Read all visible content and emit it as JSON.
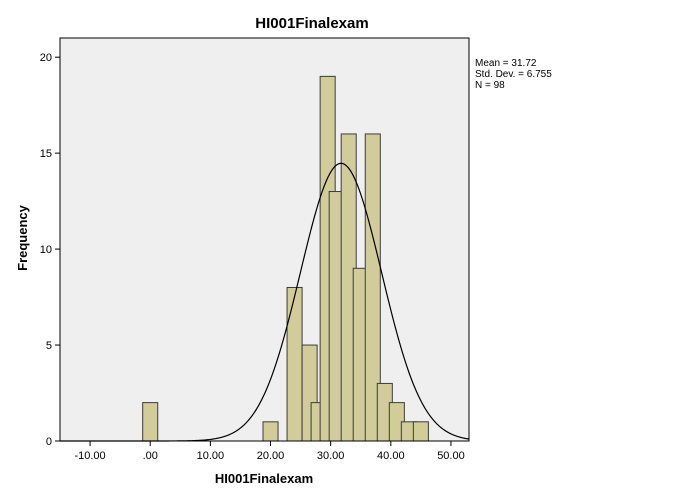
{
  "chart_data": {
    "type": "bar",
    "title": "HI001Finalexam",
    "xlabel": "HI001Finalexam",
    "ylabel": "Frequency",
    "xlim": [
      -15,
      53
    ],
    "ylim": [
      0,
      21
    ],
    "bin_width": 2.5,
    "x_ticks": [
      -10,
      0,
      10,
      20,
      30,
      40,
      50
    ],
    "x_tick_labels": [
      "-10.00",
      ".00",
      "10.00",
      "20.00",
      "30.00",
      "40.00",
      "50.00"
    ],
    "y_ticks": [
      0,
      5,
      10,
      15,
      20
    ],
    "y_tick_labels": [
      "0",
      "5",
      "10",
      "15",
      "20"
    ],
    "bins": [
      {
        "x": 0,
        "value": 2
      },
      {
        "x": 20,
        "value": 1
      },
      {
        "x": 24,
        "value": 8
      },
      {
        "x": 26.5,
        "value": 5
      },
      {
        "x": 28,
        "value": 2
      },
      {
        "x": 29.5,
        "value": 19
      },
      {
        "x": 31,
        "value": 13
      },
      {
        "x": 33,
        "value": 16
      },
      {
        "x": 35,
        "value": 9
      },
      {
        "x": 37,
        "value": 16
      },
      {
        "x": 39,
        "value": 3
      },
      {
        "x": 41,
        "value": 2
      },
      {
        "x": 43,
        "value": 1
      },
      {
        "x": 45,
        "value": 1
      }
    ],
    "normal_curve": {
      "mean": 31.72,
      "std_dev": 6.755,
      "n": 98
    },
    "stats": {
      "mean": "Mean = 31.72",
      "std_dev": "Std. Dev. = 6.755",
      "n": "N = 98"
    },
    "colors": {
      "plot_background": "#efefef",
      "bar_fill": "#d2cc9b",
      "bar_stroke": "#3b3b3b",
      "curve": "#000000"
    },
    "grid": false,
    "legend": "right"
  }
}
